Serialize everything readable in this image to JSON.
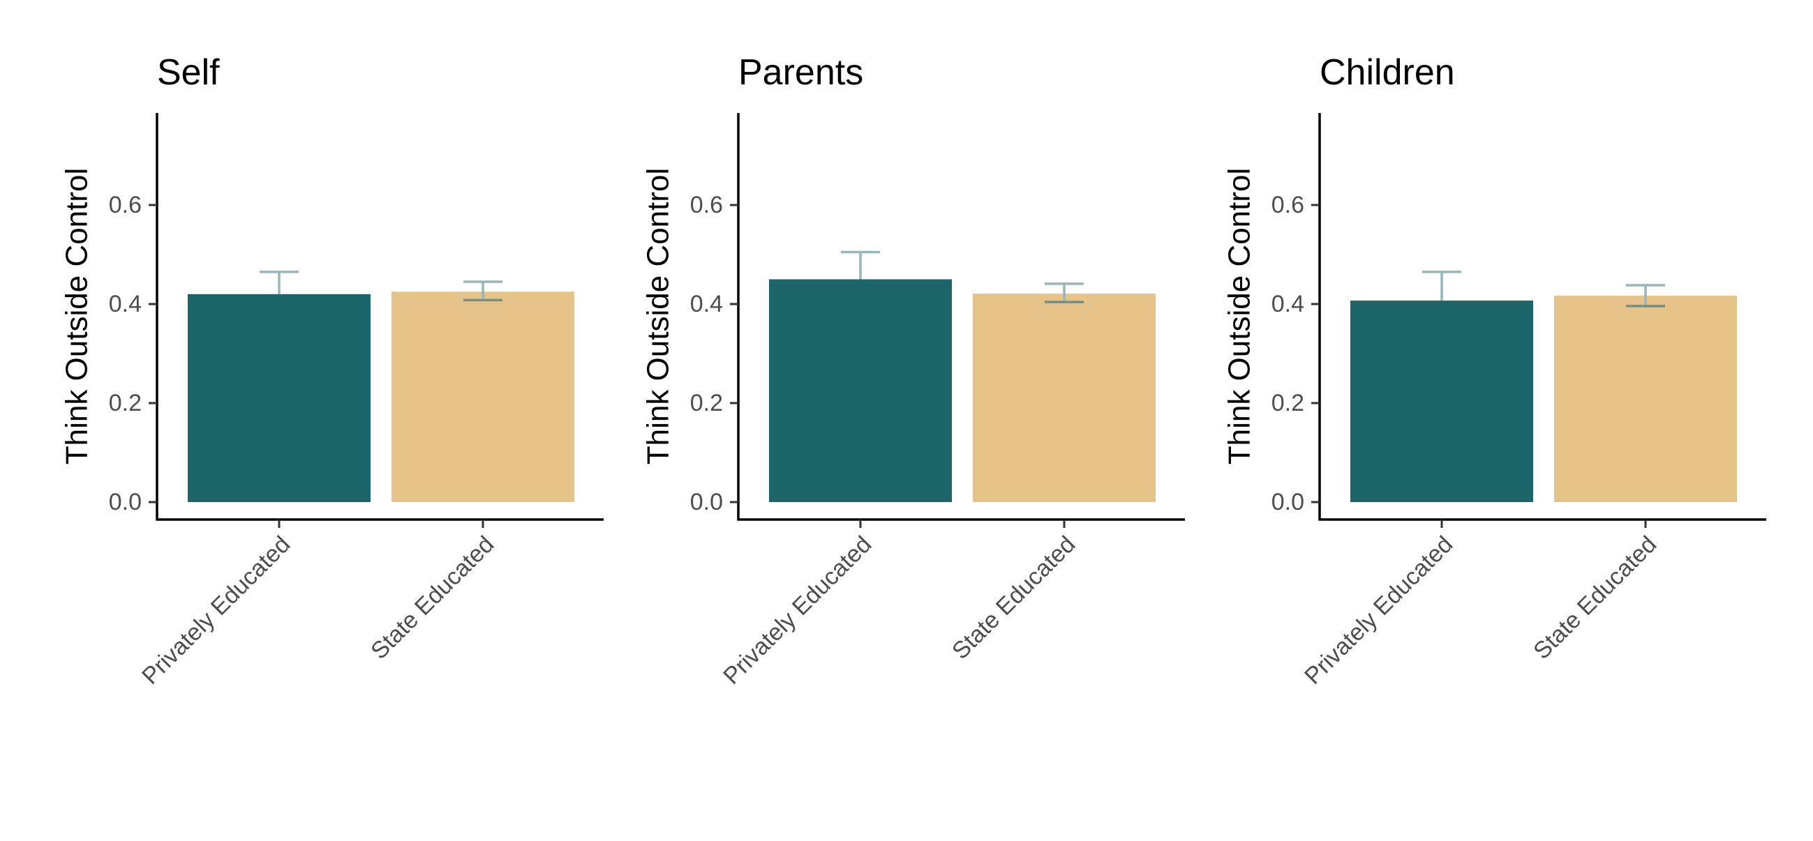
{
  "chart_data": [
    {
      "type": "bar",
      "title": "Self",
      "ylabel": "Think Outside Control",
      "xlabel": "",
      "categories": [
        "Privately Educated",
        "State Educated"
      ],
      "values": [
        0.42,
        0.425
      ],
      "error_upper": [
        0.465,
        0.445
      ],
      "error_lower": [
        0.42,
        0.408
      ],
      "ylim": [
        0,
        0.78
      ],
      "yticks": [
        "0.0",
        "0.2",
        "0.4",
        "0.6"
      ],
      "grid": false,
      "colors": [
        "#1c6669",
        "#e5c389"
      ]
    },
    {
      "type": "bar",
      "title": "Parents",
      "ylabel": "Think Outside Control",
      "xlabel": "",
      "categories": [
        "Privately Educated",
        "State Educated"
      ],
      "values": [
        0.45,
        0.421
      ],
      "error_upper": [
        0.505,
        0.441
      ],
      "error_lower": [
        0.45,
        0.404
      ],
      "ylim": [
        0,
        0.78
      ],
      "yticks": [
        "0.0",
        "0.2",
        "0.4",
        "0.6"
      ],
      "grid": false,
      "colors": [
        "#1c6669",
        "#e5c389"
      ]
    },
    {
      "type": "bar",
      "title": "Children",
      "ylabel": "Think Outside Control",
      "xlabel": "",
      "categories": [
        "Privately Educated",
        "State Educated"
      ],
      "values": [
        0.407,
        0.417
      ],
      "error_upper": [
        0.465,
        0.438
      ],
      "error_lower": [
        0.407,
        0.396
      ],
      "ylim": [
        0,
        0.78
      ],
      "yticks": [
        "0.0",
        "0.2",
        "0.4",
        "0.6"
      ],
      "grid": false,
      "colors": [
        "#1c6669",
        "#e5c389"
      ]
    }
  ]
}
